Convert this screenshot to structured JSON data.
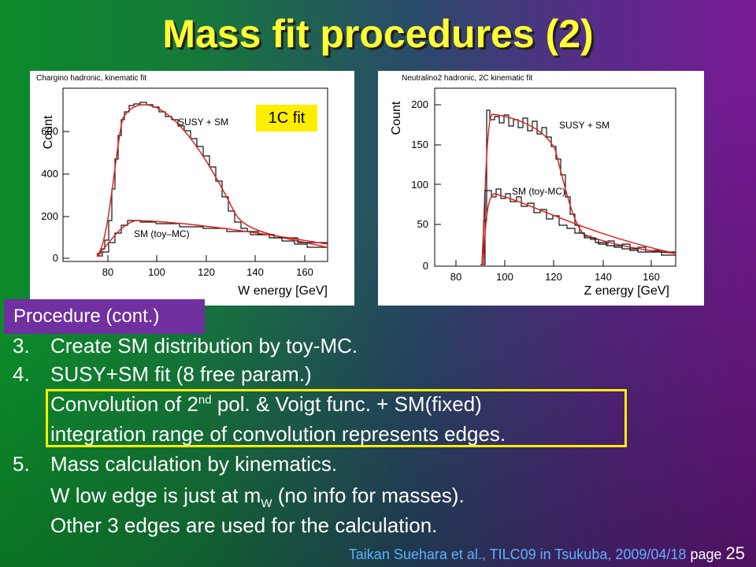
{
  "title": "Mass fit procedures (2)",
  "left_plot": {
    "title": "Chargino hadronic, kinematic fit",
    "ylabel": "Count",
    "xlabel": "W energy [GeV]",
    "xticks": [
      "80",
      "100",
      "120",
      "140",
      "160"
    ],
    "yticks": [
      "0",
      "200",
      "400",
      "600"
    ],
    "label_total": "SUSY + SM",
    "label_sm": "SM (toy–MC)",
    "badge": "1C fit"
  },
  "right_plot": {
    "title": "Neutralino2 hadronic, 2C kinematic fit",
    "ylabel": "Count",
    "xlabel": "Z energy [GeV]",
    "xticks": [
      "80",
      "100",
      "120",
      "140",
      "160"
    ],
    "yticks": [
      "0",
      "50",
      "100",
      "150",
      "200"
    ],
    "label_total": "SUSY + SM",
    "label_sm": "SM (toy-MC)"
  },
  "procedure_label": "Procedure (cont.)",
  "items": [
    {
      "num": "3.",
      "text": "Create SM distribution by toy-MC."
    },
    {
      "num": "4.",
      "text": "SUSY+SM fit (8 free param.)"
    },
    {
      "line_a": "Convolution of 2",
      "sup": "nd",
      "line_b": " pol. & Voigt func. + SM(fixed)"
    },
    {
      "text": "integration range of convolution represents edges."
    },
    {
      "num": "5.",
      "text": "Mass calculation by kinematics."
    },
    {
      "line_a": "W low edge is just at m",
      "sub": "W",
      "line_b": " (no info for masses)."
    },
    {
      "text": "Other 3 edges are used for the calculation."
    }
  ],
  "footer": {
    "credit": "Taikan Suehara et al., TILC09 in Tsukuba, 2009/04/18",
    "page_label": "page",
    "page_num": "25"
  },
  "colors": {
    "title": "#ffff33",
    "highlight": "#ffee00",
    "procedure_bg": "#7030a0",
    "fit_curve": "#dd2222"
  }
}
